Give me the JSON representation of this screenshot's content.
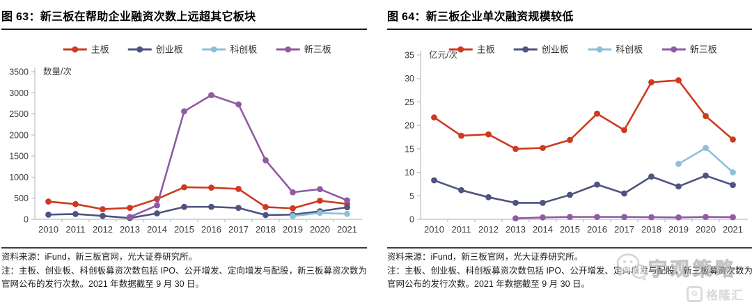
{
  "figures": [
    {
      "title": "图 63：新三板在帮助企业融资次数上远超其它板块",
      "source": "资料来源：iFund，新三板官网，光大证券研究所。",
      "note": "注：主板、创业板、科创板募资次数包括 IPO、公开增发、定向增发与配股，新三板募资次数为官网公布的发行次数。2021 年数据截至 9 月 30 日。"
    },
    {
      "title": "图 64：新三板企业单次融资规模较低",
      "source": "资料来源：iFund，新三板官网，光大证券研究所。",
      "note": "注：主板、创业板、科创板募资次数包括 IPO、公开增发、定向增发与配股，新三板募资次数为官网公布的发行次数。2021 年数据截至 9 月 30 日。"
    }
  ],
  "watermark": {
    "wechat_name": "宇观策略",
    "logo_icon": "G",
    "logo_text": "格隆汇"
  },
  "colors": {
    "zhuban": "#cd3a20",
    "chuangyeban": "#4e5380",
    "kechuangban": "#8cc0da",
    "xinsanban": "#8f5ba2",
    "axis": "#b9bec6",
    "tick_text": "#3c3c3c"
  },
  "chart_data": [
    {
      "type": "line",
      "title": "图 63：新三板在帮助企业融资次数上远超其它板块",
      "xlabel": "",
      "ylabel": "数量/次",
      "categories": [
        "2010",
        "2011",
        "2012",
        "2013",
        "2014",
        "2015",
        "2016",
        "2017",
        "2018",
        "2019",
        "2020",
        "2021"
      ],
      "ylim": [
        0,
        3500
      ],
      "ytick_step": 500,
      "grid": false,
      "legend_position": "top",
      "plot": {
        "top": 58
      },
      "series": [
        {
          "name": "主板",
          "color": "#cd3a20",
          "values": [
            420,
            360,
            240,
            270,
            480,
            760,
            750,
            720,
            290,
            260,
            440,
            365
          ]
        },
        {
          "name": "创业板",
          "color": "#4e5380",
          "values": [
            110,
            125,
            80,
            30,
            140,
            295,
            295,
            270,
            100,
            110,
            190,
            285
          ]
        },
        {
          "name": "科创板",
          "color": "#8cc0da",
          "values": [
            null,
            null,
            null,
            null,
            null,
            null,
            null,
            null,
            null,
            75,
            150,
            130
          ]
        },
        {
          "name": "新三板",
          "color": "#8f5ba2",
          "values": [
            null,
            null,
            null,
            55,
            330,
            2560,
            2945,
            2725,
            1400,
            640,
            715,
            450
          ]
        }
      ]
    },
    {
      "type": "line",
      "title": "图 64：新三板企业单次融资规模较低",
      "xlabel": "",
      "ylabel": "亿元/次",
      "categories": [
        "2010",
        "2011",
        "2012",
        "2013",
        "2014",
        "2015",
        "2016",
        "2017",
        "2018",
        "2019",
        "2020",
        "2021"
      ],
      "ylim": [
        0,
        35
      ],
      "ytick_step": 5,
      "grid": false,
      "legend_position": "top",
      "plot": {
        "top": 34
      },
      "series": [
        {
          "name": "主板",
          "color": "#cd3a20",
          "values": [
            21.7,
            17.8,
            18.1,
            15.0,
            15.2,
            16.9,
            22.5,
            19.0,
            29.2,
            29.6,
            22.0,
            17.0
          ]
        },
        {
          "name": "创业板",
          "color": "#4e5380",
          "values": [
            8.3,
            6.2,
            4.7,
            3.5,
            3.5,
            5.2,
            7.4,
            5.5,
            9.1,
            7.0,
            9.3,
            7.3
          ]
        },
        {
          "name": "科创板",
          "color": "#8cc0da",
          "values": [
            null,
            null,
            null,
            null,
            null,
            null,
            null,
            null,
            null,
            11.8,
            15.2,
            10.0
          ]
        },
        {
          "name": "新三板",
          "color": "#8f5ba2",
          "values": [
            null,
            null,
            null,
            0.2,
            0.4,
            0.5,
            0.5,
            0.5,
            0.45,
            0.4,
            0.5,
            0.45
          ]
        }
      ]
    }
  ]
}
